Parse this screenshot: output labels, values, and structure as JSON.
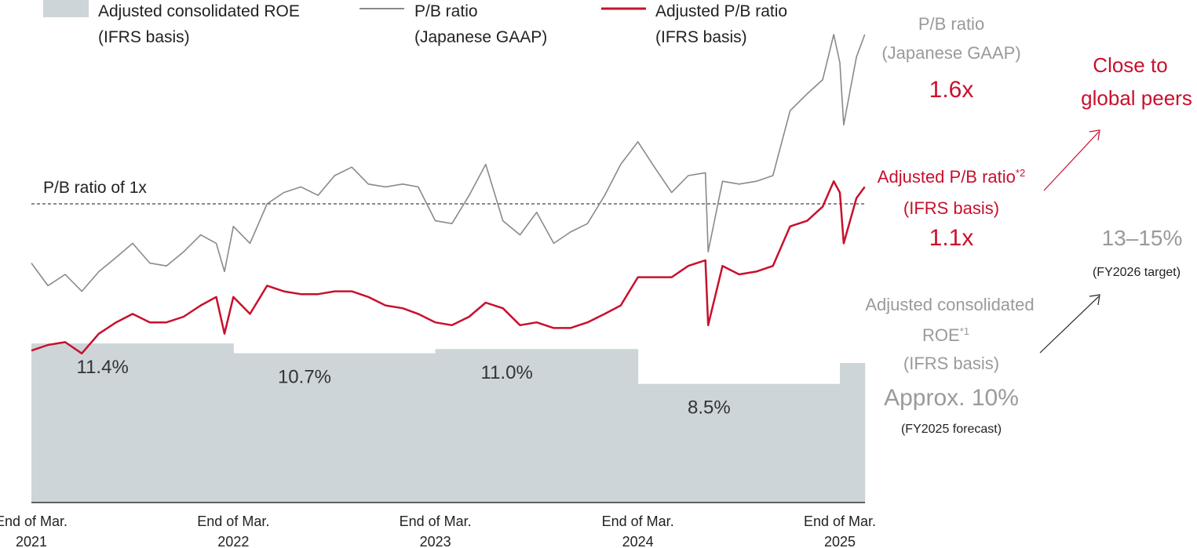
{
  "chart_data": {
    "type": "line",
    "legend": {
      "position": "top-left",
      "items": [
        {
          "line1": "Adjusted consolidated ROE",
          "line2": "(IFRS basis)",
          "kind": "area",
          "color": "#cdd5d8"
        },
        {
          "line1": "P/B ratio",
          "line2": "(Japanese GAAP)",
          "kind": "line",
          "color": "#8a8a8a"
        },
        {
          "line1": "Adjusted P/B ratio",
          "line2": "(IFRS basis)",
          "kind": "line",
          "color": "#c8102e"
        }
      ]
    },
    "x_ticks": [
      {
        "line1": "End of Mar.",
        "line2": "2021",
        "date": "2021-03-31"
      },
      {
        "line1": "End of Mar.",
        "line2": "2022",
        "date": "2022-03-31"
      },
      {
        "line1": "End of Mar.",
        "line2": "2023",
        "date": "2023-03-31"
      },
      {
        "line1": "End of Mar.",
        "line2": "2024",
        "date": "2024-03-31"
      },
      {
        "line1": "End of Mar.",
        "line2": "2025",
        "date": "2025-03-31"
      }
    ],
    "reference_line": {
      "label": "P/B ratio of 1x",
      "value": 1.0,
      "style": "dashed"
    },
    "roe_bars": [
      {
        "start": "2021-03-31",
        "end": "2022-03-31",
        "value": 11.4,
        "label": "11.4%"
      },
      {
        "start": "2022-03-31",
        "end": "2023-03-31",
        "value": 10.7,
        "label": "10.7%"
      },
      {
        "start": "2023-03-31",
        "end": "2024-03-31",
        "value": 11.0,
        "label": "11.0%"
      },
      {
        "start": "2024-03-31",
        "end": "2025-03-31",
        "value": 8.5,
        "label": "8.5%"
      },
      {
        "start": "2025-03-31",
        "end": "2025-05-15",
        "value": 10.0,
        "label": ""
      }
    ],
    "series": [
      {
        "name": "P/B ratio (Japanese GAAP)",
        "color": "#8a8a8a",
        "points": [
          [
            "2021-03-31",
            0.79
          ],
          [
            "2021-04-30",
            0.71
          ],
          [
            "2021-05-31",
            0.75
          ],
          [
            "2021-06-30",
            0.69
          ],
          [
            "2021-07-31",
            0.76
          ],
          [
            "2021-08-31",
            0.81
          ],
          [
            "2021-09-30",
            0.86
          ],
          [
            "2021-10-31",
            0.79
          ],
          [
            "2021-11-30",
            0.78
          ],
          [
            "2021-12-31",
            0.83
          ],
          [
            "2022-01-31",
            0.89
          ],
          [
            "2022-02-28",
            0.86
          ],
          [
            "2022-03-15",
            0.76
          ],
          [
            "2022-03-31",
            0.92
          ],
          [
            "2022-04-30",
            0.86
          ],
          [
            "2022-05-31",
            1.0
          ],
          [
            "2022-06-30",
            1.04
          ],
          [
            "2022-07-31",
            1.06
          ],
          [
            "2022-08-31",
            1.03
          ],
          [
            "2022-09-30",
            1.1
          ],
          [
            "2022-10-31",
            1.13
          ],
          [
            "2022-11-30",
            1.07
          ],
          [
            "2022-12-31",
            1.06
          ],
          [
            "2023-01-31",
            1.07
          ],
          [
            "2023-02-28",
            1.06
          ],
          [
            "2023-03-31",
            0.94
          ],
          [
            "2023-04-30",
            0.93
          ],
          [
            "2023-05-31",
            1.03
          ],
          [
            "2023-06-30",
            1.14
          ],
          [
            "2023-07-31",
            0.94
          ],
          [
            "2023-08-31",
            0.89
          ],
          [
            "2023-09-30",
            0.97
          ],
          [
            "2023-10-31",
            0.86
          ],
          [
            "2023-11-30",
            0.9
          ],
          [
            "2023-12-31",
            0.93
          ],
          [
            "2024-01-31",
            1.03
          ],
          [
            "2024-02-29",
            1.14
          ],
          [
            "2024-03-31",
            1.22
          ],
          [
            "2024-04-30",
            1.13
          ],
          [
            "2024-05-31",
            1.04
          ],
          [
            "2024-06-30",
            1.1
          ],
          [
            "2024-07-31",
            1.11
          ],
          [
            "2024-08-05",
            0.83
          ],
          [
            "2024-08-31",
            1.08
          ],
          [
            "2024-09-30",
            1.07
          ],
          [
            "2024-10-31",
            1.08
          ],
          [
            "2024-11-30",
            1.1
          ],
          [
            "2024-12-31",
            1.33
          ],
          [
            "2025-01-31",
            1.39
          ],
          [
            "2025-02-28",
            1.44
          ],
          [
            "2025-03-20",
            1.6
          ],
          [
            "2025-03-31",
            1.5
          ],
          [
            "2025-04-07",
            1.28
          ],
          [
            "2025-04-30",
            1.52
          ],
          [
            "2025-05-15",
            1.6
          ]
        ]
      },
      {
        "name": "Adjusted P/B ratio (IFRS basis)",
        "color": "#c8102e",
        "points": [
          [
            "2021-03-31",
            0.48
          ],
          [
            "2021-04-30",
            0.5
          ],
          [
            "2021-05-31",
            0.51
          ],
          [
            "2021-06-30",
            0.47
          ],
          [
            "2021-07-31",
            0.54
          ],
          [
            "2021-08-31",
            0.58
          ],
          [
            "2021-09-30",
            0.61
          ],
          [
            "2021-10-31",
            0.58
          ],
          [
            "2021-11-30",
            0.58
          ],
          [
            "2021-12-31",
            0.6
          ],
          [
            "2022-01-31",
            0.64
          ],
          [
            "2022-02-28",
            0.67
          ],
          [
            "2022-03-15",
            0.54
          ],
          [
            "2022-03-31",
            0.67
          ],
          [
            "2022-04-30",
            0.61
          ],
          [
            "2022-05-31",
            0.71
          ],
          [
            "2022-06-30",
            0.69
          ],
          [
            "2022-07-31",
            0.68
          ],
          [
            "2022-08-31",
            0.68
          ],
          [
            "2022-09-30",
            0.69
          ],
          [
            "2022-10-31",
            0.69
          ],
          [
            "2022-11-30",
            0.67
          ],
          [
            "2022-12-31",
            0.64
          ],
          [
            "2023-01-31",
            0.63
          ],
          [
            "2023-02-28",
            0.61
          ],
          [
            "2023-03-31",
            0.58
          ],
          [
            "2023-04-30",
            0.57
          ],
          [
            "2023-05-31",
            0.6
          ],
          [
            "2023-06-30",
            0.65
          ],
          [
            "2023-07-31",
            0.63
          ],
          [
            "2023-08-31",
            0.57
          ],
          [
            "2023-09-30",
            0.58
          ],
          [
            "2023-10-31",
            0.56
          ],
          [
            "2023-11-30",
            0.56
          ],
          [
            "2023-12-31",
            0.58
          ],
          [
            "2024-01-31",
            0.61
          ],
          [
            "2024-02-29",
            0.64
          ],
          [
            "2024-03-31",
            0.74
          ],
          [
            "2024-04-30",
            0.74
          ],
          [
            "2024-05-31",
            0.74
          ],
          [
            "2024-06-30",
            0.78
          ],
          [
            "2024-07-31",
            0.8
          ],
          [
            "2024-08-05",
            0.57
          ],
          [
            "2024-08-31",
            0.78
          ],
          [
            "2024-09-30",
            0.75
          ],
          [
            "2024-10-31",
            0.76
          ],
          [
            "2024-11-30",
            0.78
          ],
          [
            "2024-12-31",
            0.92
          ],
          [
            "2025-01-31",
            0.94
          ],
          [
            "2025-02-28",
            0.99
          ],
          [
            "2025-03-20",
            1.08
          ],
          [
            "2025-03-31",
            1.04
          ],
          [
            "2025-04-07",
            0.86
          ],
          [
            "2025-04-30",
            1.02
          ],
          [
            "2025-05-15",
            1.06
          ]
        ]
      }
    ]
  },
  "annotations": {
    "pb_jgaap": {
      "line1": "P/B ratio",
      "line2": "(Japanese GAAP)",
      "value": "1.6x"
    },
    "close_to_peers": {
      "line1": "Close to",
      "line2": "global peers"
    },
    "adj_pb": {
      "line1": "Adjusted P/B ratio",
      "sup": "*2",
      "line2": "(IFRS basis)",
      "value": "1.1x"
    },
    "target": {
      "value": "13–15%",
      "note": "(FY2026 target)"
    },
    "adj_roe": {
      "line1": "Adjusted consolidated",
      "line2": "ROE",
      "sup": "*1",
      "line3": "(IFRS basis)",
      "value": "Approx. 10%",
      "note": "(FY2025 forecast)"
    }
  },
  "colors": {
    "roe_fill": "#cdd5d8",
    "pb_line": "#8a8a8a",
    "adj_line": "#c8102e",
    "annotation_gray": "#9a9a9a"
  }
}
